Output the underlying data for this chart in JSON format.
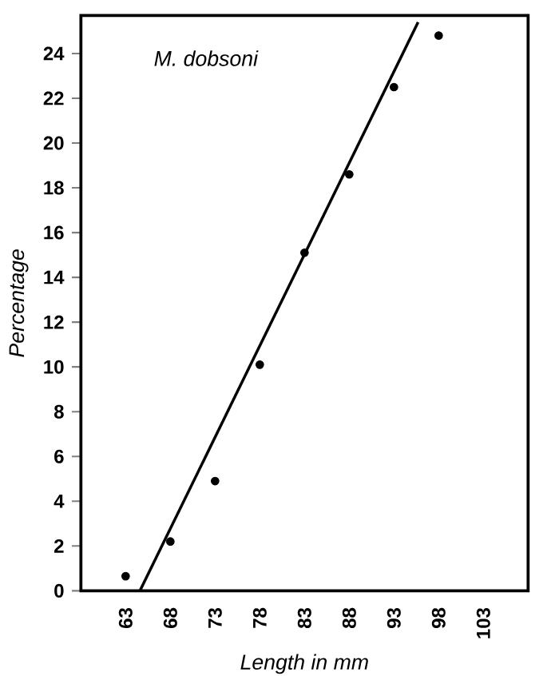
{
  "chart_data": {
    "type": "scatter",
    "title": "*M. dobsoni*",
    "xlabel": "*Length in mm*",
    "ylabel": "*Percentage*",
    "xlim": [
      58,
      108
    ],
    "xticks": [
      63,
      68,
      73,
      78,
      83,
      88,
      93,
      98,
      103
    ],
    "ylim": [
      0,
      25.7
    ],
    "yticks": [
      0,
      2,
      4,
      6,
      8,
      10,
      12,
      14,
      16,
      18,
      20,
      22,
      24
    ],
    "grid": false,
    "series": [
      {
        "marker": "circle",
        "color": "#000000",
        "x": [
          63,
          68,
          73,
          78,
          83,
          88,
          93,
          98
        ],
        "values": [
          0.65,
          2.2,
          4.9,
          10.1,
          15.1,
          18.6,
          22.5,
          24.8
        ]
      },
      {
        "type": "line",
        "marker": "none",
        "color": "#000000",
        "x": [
          64.6,
          95.7
        ],
        "values": [
          0,
          25.4
        ]
      }
    ]
  }
}
